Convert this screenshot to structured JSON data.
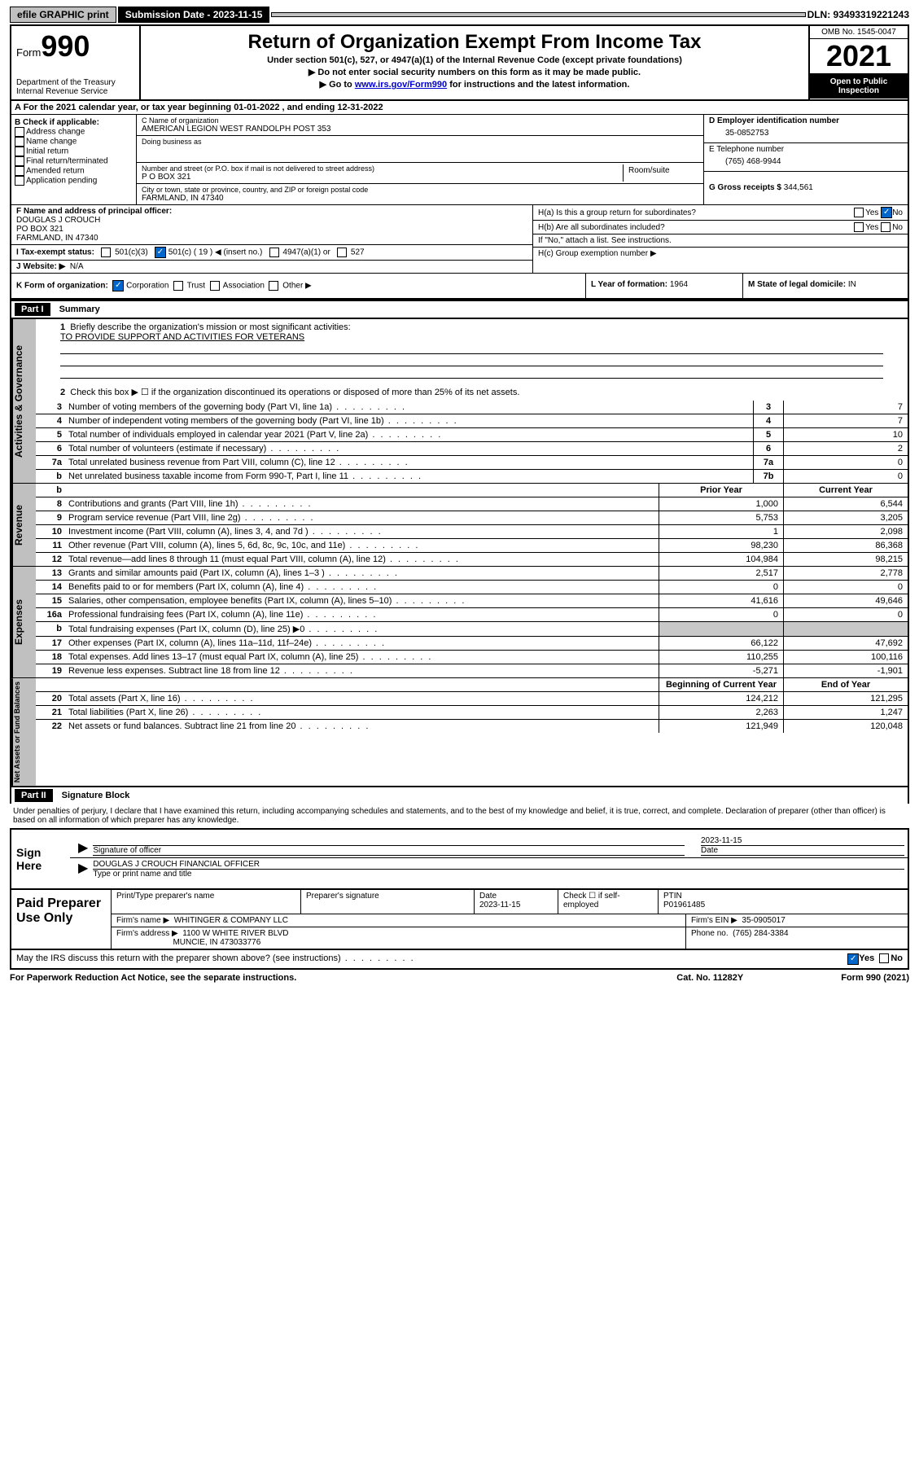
{
  "topbar": {
    "efile": "efile GRAPHIC print",
    "submission": "Submission Date - 2023-11-15",
    "dln": "DLN: 93493319221243"
  },
  "header": {
    "form": "Form",
    "form_num": "990",
    "dept": "Department of the Treasury",
    "irs": "Internal Revenue Service",
    "title": "Return of Organization Exempt From Income Tax",
    "subtitle": "Under section 501(c), 527, or 4947(a)(1) of the Internal Revenue Code (except private foundations)",
    "instr1": "▶ Do not enter social security numbers on this form as it may be made public.",
    "instr2_pre": "▶ Go to ",
    "instr2_link": "www.irs.gov/Form990",
    "instr2_post": " for instructions and the latest information.",
    "omb": "OMB No. 1545-0047",
    "year": "2021",
    "open": "Open to Public Inspection"
  },
  "row_a": "A For the 2021 calendar year, or tax year beginning 01-01-2022   , and ending 12-31-2022",
  "section_b": {
    "label": "B Check if applicable:",
    "opts": [
      "Address change",
      "Name change",
      "Initial return",
      "Final return/terminated",
      "Amended return",
      "Application pending"
    ]
  },
  "section_c": {
    "name_label": "C Name of organization",
    "name": "AMERICAN LEGION WEST RANDOLPH POST 353",
    "dba_label": "Doing business as",
    "dba": "",
    "addr_label": "Number and street (or P.O. box if mail is not delivered to street address)",
    "room_label": "Room/suite",
    "addr": "P O BOX 321",
    "city_label": "City or town, state or province, country, and ZIP or foreign postal code",
    "city": "FARMLAND, IN  47340"
  },
  "section_d": {
    "ein_label": "D Employer identification number",
    "ein": "35-0852753",
    "tel_label": "E Telephone number",
    "tel": "(765) 468-9944",
    "gross_label": "G Gross receipts $",
    "gross": "344,561"
  },
  "section_f": {
    "label": "F Name and address of principal officer:",
    "name": "DOUGLAS J CROUCH",
    "addr1": "PO BOX 321",
    "addr2": "FARMLAND, IN  47340"
  },
  "section_h": {
    "ha": "H(a)  Is this a group return for subordinates?",
    "hb": "H(b)  Are all subordinates included?",
    "hb_note": "If \"No,\" attach a list. See instructions.",
    "hc": "H(c)  Group exemption number ▶",
    "yes": "Yes",
    "no": "No"
  },
  "row_i": {
    "label": "I   Tax-exempt status:",
    "o1": "501(c)(3)",
    "o2": "501(c) ( 19 ) ◀ (insert no.)",
    "o3": "4947(a)(1) or",
    "o4": "527"
  },
  "row_j": {
    "label": "J   Website: ▶",
    "val": "N/A"
  },
  "row_k": {
    "label": "K Form of organization:",
    "corp": "Corporation",
    "trust": "Trust",
    "assoc": "Association",
    "other": "Other ▶",
    "l_label": "L Year of formation: ",
    "l_val": "1964",
    "m_label": "M State of legal domicile: ",
    "m_val": "IN"
  },
  "part1": {
    "header": "Part I",
    "title": "Summary",
    "line1": "Briefly describe the organization's mission or most significant activities:",
    "mission": "TO PROVIDE SUPPORT AND ACTIVITIES FOR VETERANS",
    "line2": "Check this box ▶ ☐  if the organization discontinued its operations or disposed of more than 25% of its net assets.",
    "vtab1": "Activities & Governance",
    "vtab2": "Revenue",
    "vtab3": "Expenses",
    "vtab4": "Net Assets or Fund Balances",
    "prior": "Prior Year",
    "current": "Current Year",
    "begin": "Beginning of Current Year",
    "end": "End of Year"
  },
  "gov_lines": [
    {
      "n": "3",
      "t": "Number of voting members of the governing body (Part VI, line 1a)",
      "b": "3",
      "v": "7"
    },
    {
      "n": "4",
      "t": "Number of independent voting members of the governing body (Part VI, line 1b)",
      "b": "4",
      "v": "7"
    },
    {
      "n": "5",
      "t": "Total number of individuals employed in calendar year 2021 (Part V, line 2a)",
      "b": "5",
      "v": "10"
    },
    {
      "n": "6",
      "t": "Total number of volunteers (estimate if necessary)",
      "b": "6",
      "v": "2"
    },
    {
      "n": "7a",
      "t": "Total unrelated business revenue from Part VIII, column (C), line 12",
      "b": "7a",
      "v": "0"
    },
    {
      "n": "b",
      "t": "Net unrelated business taxable income from Form 990-T, Part I, line 11",
      "b": "7b",
      "v": "0"
    }
  ],
  "rev_lines": [
    {
      "n": "8",
      "t": "Contributions and grants (Part VIII, line 1h)",
      "p": "1,000",
      "c": "6,544"
    },
    {
      "n": "9",
      "t": "Program service revenue (Part VIII, line 2g)",
      "p": "5,753",
      "c": "3,205"
    },
    {
      "n": "10",
      "t": "Investment income (Part VIII, column (A), lines 3, 4, and 7d )",
      "p": "1",
      "c": "2,098"
    },
    {
      "n": "11",
      "t": "Other revenue (Part VIII, column (A), lines 5, 6d, 8c, 9c, 10c, and 11e)",
      "p": "98,230",
      "c": "86,368"
    },
    {
      "n": "12",
      "t": "Total revenue—add lines 8 through 11 (must equal Part VIII, column (A), line 12)",
      "p": "104,984",
      "c": "98,215"
    }
  ],
  "exp_lines": [
    {
      "n": "13",
      "t": "Grants and similar amounts paid (Part IX, column (A), lines 1–3 )",
      "p": "2,517",
      "c": "2,778"
    },
    {
      "n": "14",
      "t": "Benefits paid to or for members (Part IX, column (A), line 4)",
      "p": "0",
      "c": "0"
    },
    {
      "n": "15",
      "t": "Salaries, other compensation, employee benefits (Part IX, column (A), lines 5–10)",
      "p": "41,616",
      "c": "49,646"
    },
    {
      "n": "16a",
      "t": "Professional fundraising fees (Part IX, column (A), line 11e)",
      "p": "0",
      "c": "0"
    },
    {
      "n": "b",
      "t": "Total fundraising expenses (Part IX, column (D), line 25) ▶0",
      "p": "",
      "c": "",
      "shade": true
    },
    {
      "n": "17",
      "t": "Other expenses (Part IX, column (A), lines 11a–11d, 11f–24e)",
      "p": "66,122",
      "c": "47,692"
    },
    {
      "n": "18",
      "t": "Total expenses. Add lines 13–17 (must equal Part IX, column (A), line 25)",
      "p": "110,255",
      "c": "100,116"
    },
    {
      "n": "19",
      "t": "Revenue less expenses. Subtract line 18 from line 12",
      "p": "-5,271",
      "c": "-1,901"
    }
  ],
  "net_lines": [
    {
      "n": "20",
      "t": "Total assets (Part X, line 16)",
      "p": "124,212",
      "c": "121,295"
    },
    {
      "n": "21",
      "t": "Total liabilities (Part X, line 26)",
      "p": "2,263",
      "c": "1,247"
    },
    {
      "n": "22",
      "t": "Net assets or fund balances. Subtract line 21 from line 20",
      "p": "121,949",
      "c": "120,048"
    }
  ],
  "part2": {
    "header": "Part II",
    "title": "Signature Block",
    "penalties": "Under penalties of perjury, I declare that I have examined this return, including accompanying schedules and statements, and to the best of my knowledge and belief, it is true, correct, and complete. Declaration of preparer (other than officer) is based on all information of which preparer has any knowledge."
  },
  "sign": {
    "label": "Sign Here",
    "sig_label": "Signature of officer",
    "date_label": "Date",
    "date": "2023-11-15",
    "name": "DOUGLAS J CROUCH  FINANCIAL OFFICER",
    "name_label": "Type or print name and title"
  },
  "preparer": {
    "label": "Paid Preparer Use Only",
    "print_label": "Print/Type preparer's name",
    "sig_label": "Preparer's signature",
    "date_label": "Date",
    "date": "2023-11-15",
    "check_label": "Check ☐ if self-employed",
    "ptin_label": "PTIN",
    "ptin": "P01961485",
    "firm_name_label": "Firm's name      ▶",
    "firm_name": "WHITINGER & COMPANY LLC",
    "firm_ein_label": "Firm's EIN ▶",
    "firm_ein": "35-0905017",
    "firm_addr_label": "Firm's address ▶",
    "firm_addr1": "1100 W WHITE RIVER BLVD",
    "firm_addr2": "MUNCIE, IN  473033776",
    "phone_label": "Phone no.",
    "phone": "(765) 284-3384"
  },
  "may_irs": "May the IRS discuss this return with the preparer shown above? (see instructions)",
  "footer": {
    "left": "For Paperwork Reduction Act Notice, see the separate instructions.",
    "mid": "Cat. No. 11282Y",
    "right": "Form 990 (2021)"
  }
}
